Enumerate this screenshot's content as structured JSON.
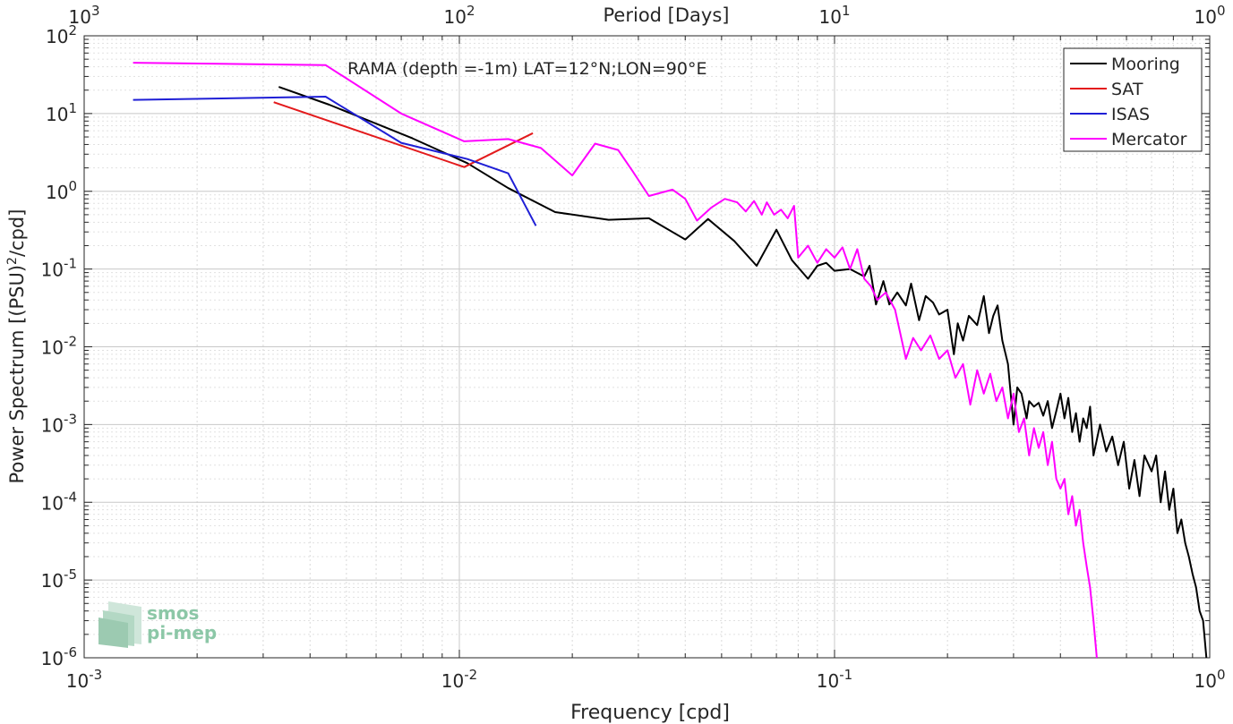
{
  "chart_data": {
    "type": "line",
    "title": "RAMA (depth =-1m) LAT=12°N;LON=90°E",
    "xlabel": "Frequency [cpd]",
    "ylabel": "Power Spectrum [(PSU)²/cpd]",
    "ylabel_main": "Power Spectrum [(PSU)",
    "ylabel_sup": "2",
    "ylabel_tail": "/cpd]",
    "top_xlabel": "Period [Days]",
    "x_scale": "log",
    "y_scale": "log",
    "xlim": [
      0.001,
      1
    ],
    "ylim": [
      1e-06,
      100
    ],
    "grid": true,
    "legend_position": "top-right",
    "x_ticks": [
      {
        "value": 0.001,
        "base": "10",
        "exp": "-3"
      },
      {
        "value": 0.01,
        "base": "10",
        "exp": "-2"
      },
      {
        "value": 0.1,
        "base": "10",
        "exp": "-1"
      },
      {
        "value": 1,
        "base": "10",
        "exp": "0"
      }
    ],
    "y_ticks": [
      {
        "value": 100,
        "base": "10",
        "exp": "2"
      },
      {
        "value": 10,
        "base": "10",
        "exp": "1"
      },
      {
        "value": 1,
        "base": "10",
        "exp": "0"
      },
      {
        "value": 0.1,
        "base": "10",
        "exp": "-1"
      },
      {
        "value": 0.01,
        "base": "10",
        "exp": "-2"
      },
      {
        "value": 0.001,
        "base": "10",
        "exp": "-3"
      },
      {
        "value": 0.0001,
        "base": "10",
        "exp": "-4"
      },
      {
        "value": 1e-05,
        "base": "10",
        "exp": "-5"
      },
      {
        "value": 1e-06,
        "base": "10",
        "exp": "-6"
      }
    ],
    "top_ticks": [
      {
        "value": 0.001,
        "base": "10",
        "exp": "3"
      },
      {
        "value": 0.01,
        "base": "10",
        "exp": "2"
      },
      {
        "value": 0.1,
        "base": "10",
        "exp": "1"
      },
      {
        "value": 1,
        "base": "10",
        "exp": "0"
      }
    ],
    "series": [
      {
        "name": "Mooring",
        "color": "#000000",
        "points": [
          [
            0.0033,
            22
          ],
          [
            0.0045,
            13
          ],
          [
            0.0075,
            4.8
          ],
          [
            0.0105,
            2.3
          ],
          [
            0.0135,
            1.1
          ],
          [
            0.018,
            0.54
          ],
          [
            0.025,
            0.43
          ],
          [
            0.032,
            0.45
          ],
          [
            0.04,
            0.24
          ],
          [
            0.046,
            0.44
          ],
          [
            0.054,
            0.23
          ],
          [
            0.062,
            0.11
          ],
          [
            0.07,
            0.32
          ],
          [
            0.077,
            0.13
          ],
          [
            0.085,
            0.075
          ],
          [
            0.09,
            0.11
          ],
          [
            0.095,
            0.12
          ],
          [
            0.1,
            0.095
          ],
          [
            0.11,
            0.1
          ],
          [
            0.12,
            0.08
          ],
          [
            0.124,
            0.11
          ],
          [
            0.129,
            0.035
          ],
          [
            0.135,
            0.07
          ],
          [
            0.14,
            0.035
          ],
          [
            0.147,
            0.05
          ],
          [
            0.155,
            0.034
          ],
          [
            0.16,
            0.065
          ],
          [
            0.168,
            0.022
          ],
          [
            0.175,
            0.045
          ],
          [
            0.183,
            0.037
          ],
          [
            0.19,
            0.026
          ],
          [
            0.2,
            0.03
          ],
          [
            0.208,
            0.008
          ],
          [
            0.213,
            0.02
          ],
          [
            0.22,
            0.012
          ],
          [
            0.228,
            0.025
          ],
          [
            0.24,
            0.019
          ],
          [
            0.25,
            0.045
          ],
          [
            0.258,
            0.015
          ],
          [
            0.265,
            0.025
          ],
          [
            0.272,
            0.034
          ],
          [
            0.28,
            0.012
          ],
          [
            0.29,
            0.006
          ],
          [
            0.3,
            0.001
          ],
          [
            0.307,
            0.003
          ],
          [
            0.315,
            0.0025
          ],
          [
            0.325,
            0.0012
          ],
          [
            0.33,
            0.002
          ],
          [
            0.34,
            0.0017
          ],
          [
            0.35,
            0.0019
          ],
          [
            0.36,
            0.0013
          ],
          [
            0.37,
            0.002
          ],
          [
            0.38,
            0.0009
          ],
          [
            0.39,
            0.0015
          ],
          [
            0.4,
            0.0025
          ],
          [
            0.41,
            0.0012
          ],
          [
            0.42,
            0.0022
          ],
          [
            0.43,
            0.0008
          ],
          [
            0.44,
            0.0014
          ],
          [
            0.45,
            0.0006
          ],
          [
            0.46,
            0.0012
          ],
          [
            0.47,
            0.0009
          ],
          [
            0.48,
            0.0017
          ],
          [
            0.49,
            0.0004
          ],
          [
            0.51,
            0.001
          ],
          [
            0.53,
            0.00045
          ],
          [
            0.55,
            0.0007
          ],
          [
            0.57,
            0.0003
          ],
          [
            0.59,
            0.0006
          ],
          [
            0.61,
            0.00015
          ],
          [
            0.63,
            0.00035
          ],
          [
            0.65,
            0.00012
          ],
          [
            0.67,
            0.0004
          ],
          [
            0.7,
            0.00025
          ],
          [
            0.72,
            0.0004
          ],
          [
            0.74,
            0.0001
          ],
          [
            0.76,
            0.00025
          ],
          [
            0.78,
            8e-05
          ],
          [
            0.8,
            0.00015
          ],
          [
            0.82,
            4e-05
          ],
          [
            0.84,
            6e-05
          ],
          [
            0.86,
            3e-05
          ],
          [
            0.88,
            2e-05
          ],
          [
            0.9,
            1.2e-05
          ],
          [
            0.92,
            8e-06
          ],
          [
            0.94,
            4e-06
          ],
          [
            0.96,
            3e-06
          ],
          [
            0.98,
            1e-06
          ]
        ]
      },
      {
        "name": "SAT",
        "color": "#e31a1c",
        "points": [
          [
            0.0032,
            14
          ],
          [
            0.0103,
            2.05
          ],
          [
            0.0157,
            5.6
          ]
        ]
      },
      {
        "name": "ISAS",
        "color": "#1f1fd6",
        "points": [
          [
            0.00135,
            15
          ],
          [
            0.0044,
            16.5
          ],
          [
            0.007,
            4.2
          ],
          [
            0.0105,
            2.6
          ],
          [
            0.0135,
            1.7
          ],
          [
            0.016,
            0.36
          ]
        ]
      },
      {
        "name": "Mercator",
        "color": "#ff00ff",
        "points": [
          [
            0.00135,
            45
          ],
          [
            0.0044,
            42
          ],
          [
            0.007,
            10
          ],
          [
            0.0103,
            4.4
          ],
          [
            0.0135,
            4.7
          ],
          [
            0.0165,
            3.6
          ],
          [
            0.02,
            1.6
          ],
          [
            0.023,
            4.1
          ],
          [
            0.0265,
            3.4
          ],
          [
            0.029,
            1.8
          ],
          [
            0.032,
            0.87
          ],
          [
            0.037,
            1.05
          ],
          [
            0.04,
            0.8
          ],
          [
            0.043,
            0.42
          ],
          [
            0.047,
            0.62
          ],
          [
            0.051,
            0.8
          ],
          [
            0.055,
            0.72
          ],
          [
            0.058,
            0.55
          ],
          [
            0.061,
            0.75
          ],
          [
            0.064,
            0.5
          ],
          [
            0.066,
            0.72
          ],
          [
            0.069,
            0.5
          ],
          [
            0.072,
            0.58
          ],
          [
            0.075,
            0.45
          ],
          [
            0.078,
            0.65
          ],
          [
            0.08,
            0.14
          ],
          [
            0.085,
            0.2
          ],
          [
            0.09,
            0.12
          ],
          [
            0.095,
            0.18
          ],
          [
            0.1,
            0.14
          ],
          [
            0.105,
            0.19
          ],
          [
            0.11,
            0.1
          ],
          [
            0.115,
            0.18
          ],
          [
            0.12,
            0.075
          ],
          [
            0.125,
            0.06
          ],
          [
            0.13,
            0.04
          ],
          [
            0.137,
            0.05
          ],
          [
            0.145,
            0.03
          ],
          [
            0.155,
            0.007
          ],
          [
            0.162,
            0.013
          ],
          [
            0.17,
            0.009
          ],
          [
            0.18,
            0.014
          ],
          [
            0.19,
            0.007
          ],
          [
            0.2,
            0.009
          ],
          [
            0.21,
            0.004
          ],
          [
            0.22,
            0.006
          ],
          [
            0.23,
            0.0018
          ],
          [
            0.24,
            0.005
          ],
          [
            0.25,
            0.0025
          ],
          [
            0.26,
            0.0045
          ],
          [
            0.27,
            0.002
          ],
          [
            0.28,
            0.003
          ],
          [
            0.29,
            0.0012
          ],
          [
            0.3,
            0.0025
          ],
          [
            0.31,
            0.0008
          ],
          [
            0.32,
            0.0012
          ],
          [
            0.33,
            0.0004
          ],
          [
            0.34,
            0.0009
          ],
          [
            0.35,
            0.0005
          ],
          [
            0.36,
            0.0008
          ],
          [
            0.37,
            0.0003
          ],
          [
            0.38,
            0.0006
          ],
          [
            0.39,
            0.0002
          ],
          [
            0.4,
            0.00015
          ],
          [
            0.41,
            0.0002
          ],
          [
            0.42,
            7e-05
          ],
          [
            0.43,
            0.00012
          ],
          [
            0.44,
            5e-05
          ],
          [
            0.45,
            8e-05
          ],
          [
            0.46,
            3e-05
          ],
          [
            0.47,
            1.5e-05
          ],
          [
            0.48,
            8e-06
          ],
          [
            0.49,
            3e-06
          ],
          [
            0.5,
            1e-06
          ]
        ]
      }
    ]
  },
  "watermark": {
    "line1": "smos",
    "line2": "pi-mep"
  }
}
